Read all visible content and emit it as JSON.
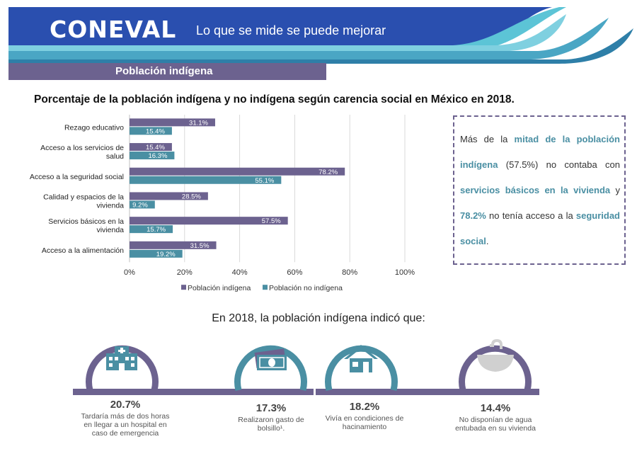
{
  "header": {
    "logo_text": "CONEVAL",
    "tagline": "Lo que se mide se puede mejorar",
    "section_title": "Población indígena"
  },
  "chart_title": "Porcentaje de la población indígena y no indígena según carencia social en México en 2018.",
  "chart_data": {
    "type": "bar",
    "orientation": "horizontal",
    "categories": [
      [
        "Rezago educativo"
      ],
      [
        "Acceso a los servicios de",
        "salud"
      ],
      [
        "Acceso a la seguridad social"
      ],
      [
        "Calidad y espacios de la",
        "vivienda"
      ],
      [
        "Servicios básicos en la",
        "vivienda"
      ],
      [
        "Acceso a la alimentación"
      ]
    ],
    "series": [
      {
        "name": "Población indígena",
        "color": "#6c628f",
        "values": [
          31.1,
          15.4,
          78.2,
          28.5,
          57.5,
          31.5
        ],
        "labels": [
          "31.1%",
          "15.4%",
          "78.2%",
          "28.5%",
          "57.5%",
          "31.5%"
        ]
      },
      {
        "name": "Población no indígena",
        "color": "#4a8fa3",
        "values": [
          15.4,
          16.3,
          55.1,
          9.2,
          15.7,
          19.2
        ],
        "labels": [
          "15.4%",
          "16.3%",
          "55.1%",
          "9.2%",
          "15.7%",
          "19.2%"
        ]
      }
    ],
    "xlim": [
      0,
      100
    ],
    "xticks": [
      "0%",
      "20%",
      "40%",
      "60%",
      "80%",
      "100%"
    ],
    "grid": true,
    "legend_position": "bottom"
  },
  "callout": {
    "p1": "Más de la ",
    "h1": "mitad de la población indígena",
    "p2": " (57.5%) no contaba con ",
    "h2": "servicios básicos en la vivienda",
    "p3": " y ",
    "h3": "78.2%",
    "p4": " no tenía acceso a la ",
    "h4": "seguridad social",
    "p5": "."
  },
  "infographic": {
    "title": "En 2018, la población indígena indicó que:",
    "colors": {
      "purple": "#6c628f",
      "teal": "#4a8fa3",
      "gray": "#8a8a8a",
      "icon_fill": "#4a8fa3"
    },
    "items": [
      {
        "icon": "hospital-icon",
        "value": "20.7%",
        "desc": [
          "Tardaría más de dos horas",
          "en llegar a un hospital en",
          "caso de emergencia"
        ]
      },
      {
        "icon": "money-icon",
        "value": "17.3%",
        "desc": [
          "Realizaron gasto de",
          "bolsillo¹."
        ]
      },
      {
        "icon": "house-icon",
        "value": "18.2%",
        "desc": [
          "Vivía en condiciones de",
          "hacinamiento"
        ]
      },
      {
        "icon": "sink-icon",
        "value": "14.4%",
        "desc": [
          "No disponían de agua",
          "entubada en su vivienda"
        ]
      }
    ]
  }
}
